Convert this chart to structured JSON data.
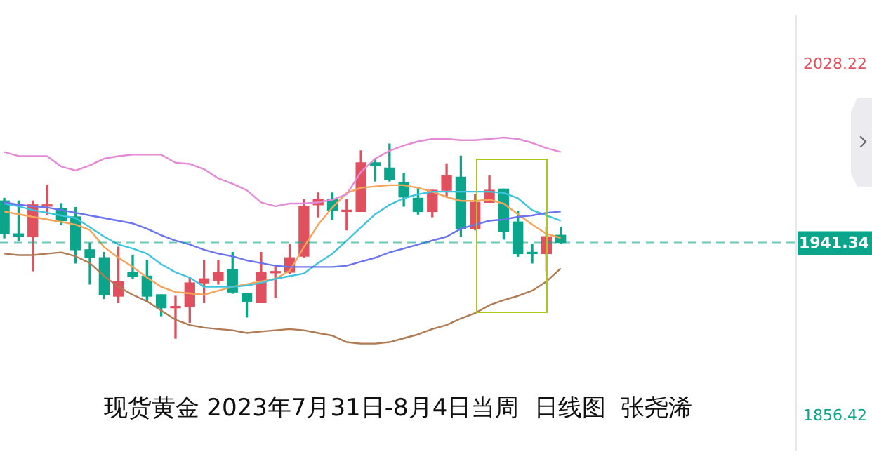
{
  "chart_data": {
    "type": "candlestick",
    "title": "现货黄金 2023年7月31日-8月4日当周  日线图  张尧浠",
    "categories": [
      null,
      null,
      null,
      null,
      null,
      null,
      null,
      null,
      null,
      null,
      null,
      null,
      null,
      null,
      null,
      null,
      null,
      null,
      null,
      null,
      null,
      null,
      null,
      null,
      null,
      null,
      null,
      null,
      null,
      null,
      null,
      null,
      null,
      null,
      null,
      null,
      null,
      null,
      null,
      null
    ],
    "ohlc": [
      [
        1961.7,
        1963.0,
        1943.6,
        1945.6
      ],
      [
        1945.6,
        1961.7,
        1942.3,
        1944.2
      ],
      [
        1944.2,
        1961.7,
        1927.5,
        1959.8
      ],
      [
        1959.1,
        1969.4,
        1955.2,
        1959.8
      ],
      [
        1957.8,
        1960.4,
        1950.1,
        1952.0
      ],
      [
        1953.9,
        1958.5,
        1931.3,
        1937.8
      ],
      [
        1937.8,
        1941.0,
        1921.0,
        1933.9
      ],
      [
        1933.9,
        1936.5,
        1913.9,
        1915.8
      ],
      [
        1915.1,
        1939.1,
        1911.9,
        1922.2
      ],
      [
        1926.8,
        1935.2,
        1923.6,
        1924.9
      ],
      [
        1924.9,
        1932.6,
        1912.6,
        1915.1
      ],
      [
        1915.8,
        1915.8,
        1905.5,
        1909.4
      ],
      [
        1909.4,
        1915.1,
        1894.5,
        1910.0
      ],
      [
        1910.0,
        1924.2,
        1902.3,
        1921.6
      ],
      [
        1921.6,
        1932.6,
        1911.9,
        1923.6
      ],
      [
        1922.9,
        1932.6,
        1921.0,
        1926.8
      ],
      [
        1928.1,
        1936.5,
        1916.5,
        1917.1
      ],
      [
        1916.5,
        1916.5,
        1904.9,
        1912.6
      ],
      [
        1911.9,
        1936.5,
        1911.9,
        1926.8
      ],
      [
        1926.5,
        1930.0,
        1914.5,
        1926.8
      ],
      [
        1926.8,
        1940.4,
        1926.2,
        1933.9
      ],
      [
        1934.6,
        1962.3,
        1933.9,
        1959.1
      ],
      [
        1959.8,
        1965.6,
        1953.9,
        1962.3
      ],
      [
        1962.3,
        1965.6,
        1952.6,
        1957.2
      ],
      [
        1956.5,
        1962.3,
        1947.5,
        1957.0
      ],
      [
        1956.5,
        1986.2,
        1956.5,
        1980.4
      ],
      [
        1980.4,
        1982.4,
        1971.4,
        1979.1
      ],
      [
        1977.8,
        1989.5,
        1971.4,
        1972.0
      ],
      [
        1970.7,
        1975.3,
        1959.1,
        1963.6
      ],
      [
        1963.0,
        1968.1,
        1955.2,
        1956.5
      ],
      [
        1956.5,
        1966.9,
        1953.9,
        1966.9
      ],
      [
        1966.9,
        1979.8,
        1963.6,
        1974.0
      ],
      [
        1973.3,
        1983.6,
        1944.2,
        1948.1
      ],
      [
        1948.1,
        1964.9,
        1947.5,
        1961.0
      ],
      [
        1961.0,
        1974.0,
        1961.0,
        1966.9
      ],
      [
        1967.5,
        1967.5,
        1943.0,
        1946.8
      ],
      [
        1951.4,
        1956.5,
        1934.6,
        1935.9
      ],
      [
        1936.2,
        1940.4,
        1931.3,
        1935.9
      ],
      [
        1935.9,
        1948.8,
        1927.5,
        1944.2
      ],
      [
        1944.9,
        1948.8,
        1941.0,
        1941.34
      ]
    ],
    "colors": [
      "#0aa58a",
      "#0aa58a",
      "#e0505e",
      "#e0505e",
      "#0aa58a",
      "#0aa58a",
      "#0aa58a",
      "#0aa58a",
      "#e0505e",
      "#0aa58a",
      "#0aa58a",
      "#0aa58a",
      "#e0505e",
      "#e0505e",
      "#e0505e",
      "#e0505e",
      "#0aa58a",
      "#0aa58a",
      "#e0505e",
      "#e0505e",
      "#e0505e",
      "#e0505e",
      "#e0505e",
      "#0aa58a",
      "#e0505e",
      "#e0505e",
      "#0aa58a",
      "#0aa58a",
      "#0aa58a",
      "#0aa58a",
      "#e0505e",
      "#e0505e",
      "#0aa58a",
      "#e0505e",
      "#e0505e",
      "#0aa58a",
      "#0aa58a",
      "#0aa58a",
      "#e0505e",
      "#0aa58a"
    ],
    "series": [
      {
        "type": "line",
        "color": "#e58ad6",
        "values": [
          1985.6,
          1983.6,
          1983.6,
          1983.6,
          1978.5,
          1976.6,
          1979.1,
          1982.4,
          1983.6,
          1984.3,
          1984.3,
          1984.3,
          1980.4,
          1979.8,
          1977.2,
          1972.7,
          1970.1,
          1966.9,
          1961.0,
          1959.1,
          1960.4,
          1960.4,
          1961.0,
          1962.3,
          1964.9,
          1975.9,
          1982.4,
          1986.2,
          1988.8,
          1990.8,
          1992.0,
          1992.0,
          1991.4,
          1991.4,
          1992.0,
          1992.7,
          1992.0,
          1990.1,
          1987.5,
          1985.6
        ]
      },
      {
        "type": "line",
        "color": "#b07a52",
        "values": [
          1935.9,
          1935.2,
          1935.2,
          1935.9,
          1936.5,
          1934.6,
          1931.3,
          1924.9,
          1919.7,
          1915.8,
          1912.6,
          1908.1,
          1903.6,
          1901.0,
          1899.7,
          1899.0,
          1898.4,
          1897.1,
          1897.8,
          1898.4,
          1899.0,
          1898.4,
          1897.1,
          1895.8,
          1892.6,
          1891.9,
          1891.9,
          1892.6,
          1894.5,
          1896.4,
          1899.0,
          1901.0,
          1904.2,
          1906.8,
          1910.7,
          1913.2,
          1915.2,
          1917.8,
          1922.3,
          1928.7
        ]
      },
      {
        "type": "line",
        "color": "#6b74f0",
        "values": [
          1961.0,
          1959.8,
          1959.1,
          1958.5,
          1957.2,
          1955.9,
          1954.6,
          1953.3,
          1952.0,
          1950.7,
          1948.1,
          1944.9,
          1942.3,
          1940.4,
          1937.8,
          1935.9,
          1934.6,
          1932.6,
          1931.3,
          1930.0,
          1929.4,
          1929.4,
          1929.4,
          1929.4,
          1930.0,
          1932.0,
          1933.9,
          1936.5,
          1938.4,
          1940.4,
          1942.3,
          1944.2,
          1948.1,
          1950.1,
          1952.0,
          1952.6,
          1953.9,
          1954.6,
          1955.9,
          1956.5
        ]
      },
      {
        "type": "line",
        "color": "#3fc4e0",
        "values": [
          1960.4,
          1959.1,
          1957.2,
          1955.9,
          1954.6,
          1953.3,
          1948.8,
          1944.2,
          1940.4,
          1938.4,
          1935.9,
          1930.7,
          1926.8,
          1924.2,
          1919.7,
          1919.7,
          1919.7,
          1920.3,
          1921.6,
          1923.6,
          1924.9,
          1926.2,
          1931.3,
          1935.9,
          1942.3,
          1948.8,
          1955.2,
          1959.8,
          1963.0,
          1964.9,
          1966.2,
          1966.2,
          1966.2,
          1966.2,
          1966.2,
          1965.6,
          1963.0,
          1957.2,
          1954.6,
          1952.0
        ]
      },
      {
        "type": "line",
        "color": "#f5a55a",
        "values": [
          1956.5,
          1955.2,
          1953.9,
          1952.6,
          1951.4,
          1950.1,
          1947.5,
          1939.1,
          1933.9,
          1929.4,
          1924.2,
          1919.7,
          1917.1,
          1916.5,
          1915.8,
          1917.8,
          1919.7,
          1921.0,
          1922.3,
          1923.6,
          1927.5,
          1939.1,
          1950.1,
          1958.5,
          1965.6,
          1968.1,
          1968.8,
          1969.4,
          1969.4,
          1968.1,
          1966.2,
          1963.6,
          1961.7,
          1961.7,
          1962.3,
          1960.4,
          1955.2,
          1950.1,
          1945.6,
          1943.6
        ]
      }
    ],
    "ylim": [
      1840,
      2052
    ],
    "yticks": [
      1856.42,
      2028.22
    ],
    "ref_lines": [
      {
        "axis": "y",
        "value": 1941.34,
        "label": "1941.34",
        "color": "#0aa58a",
        "line_style": "dashed"
      }
    ],
    "marker": "none",
    "grid": false,
    "legend": false,
    "tick_labels": "y"
  }
}
